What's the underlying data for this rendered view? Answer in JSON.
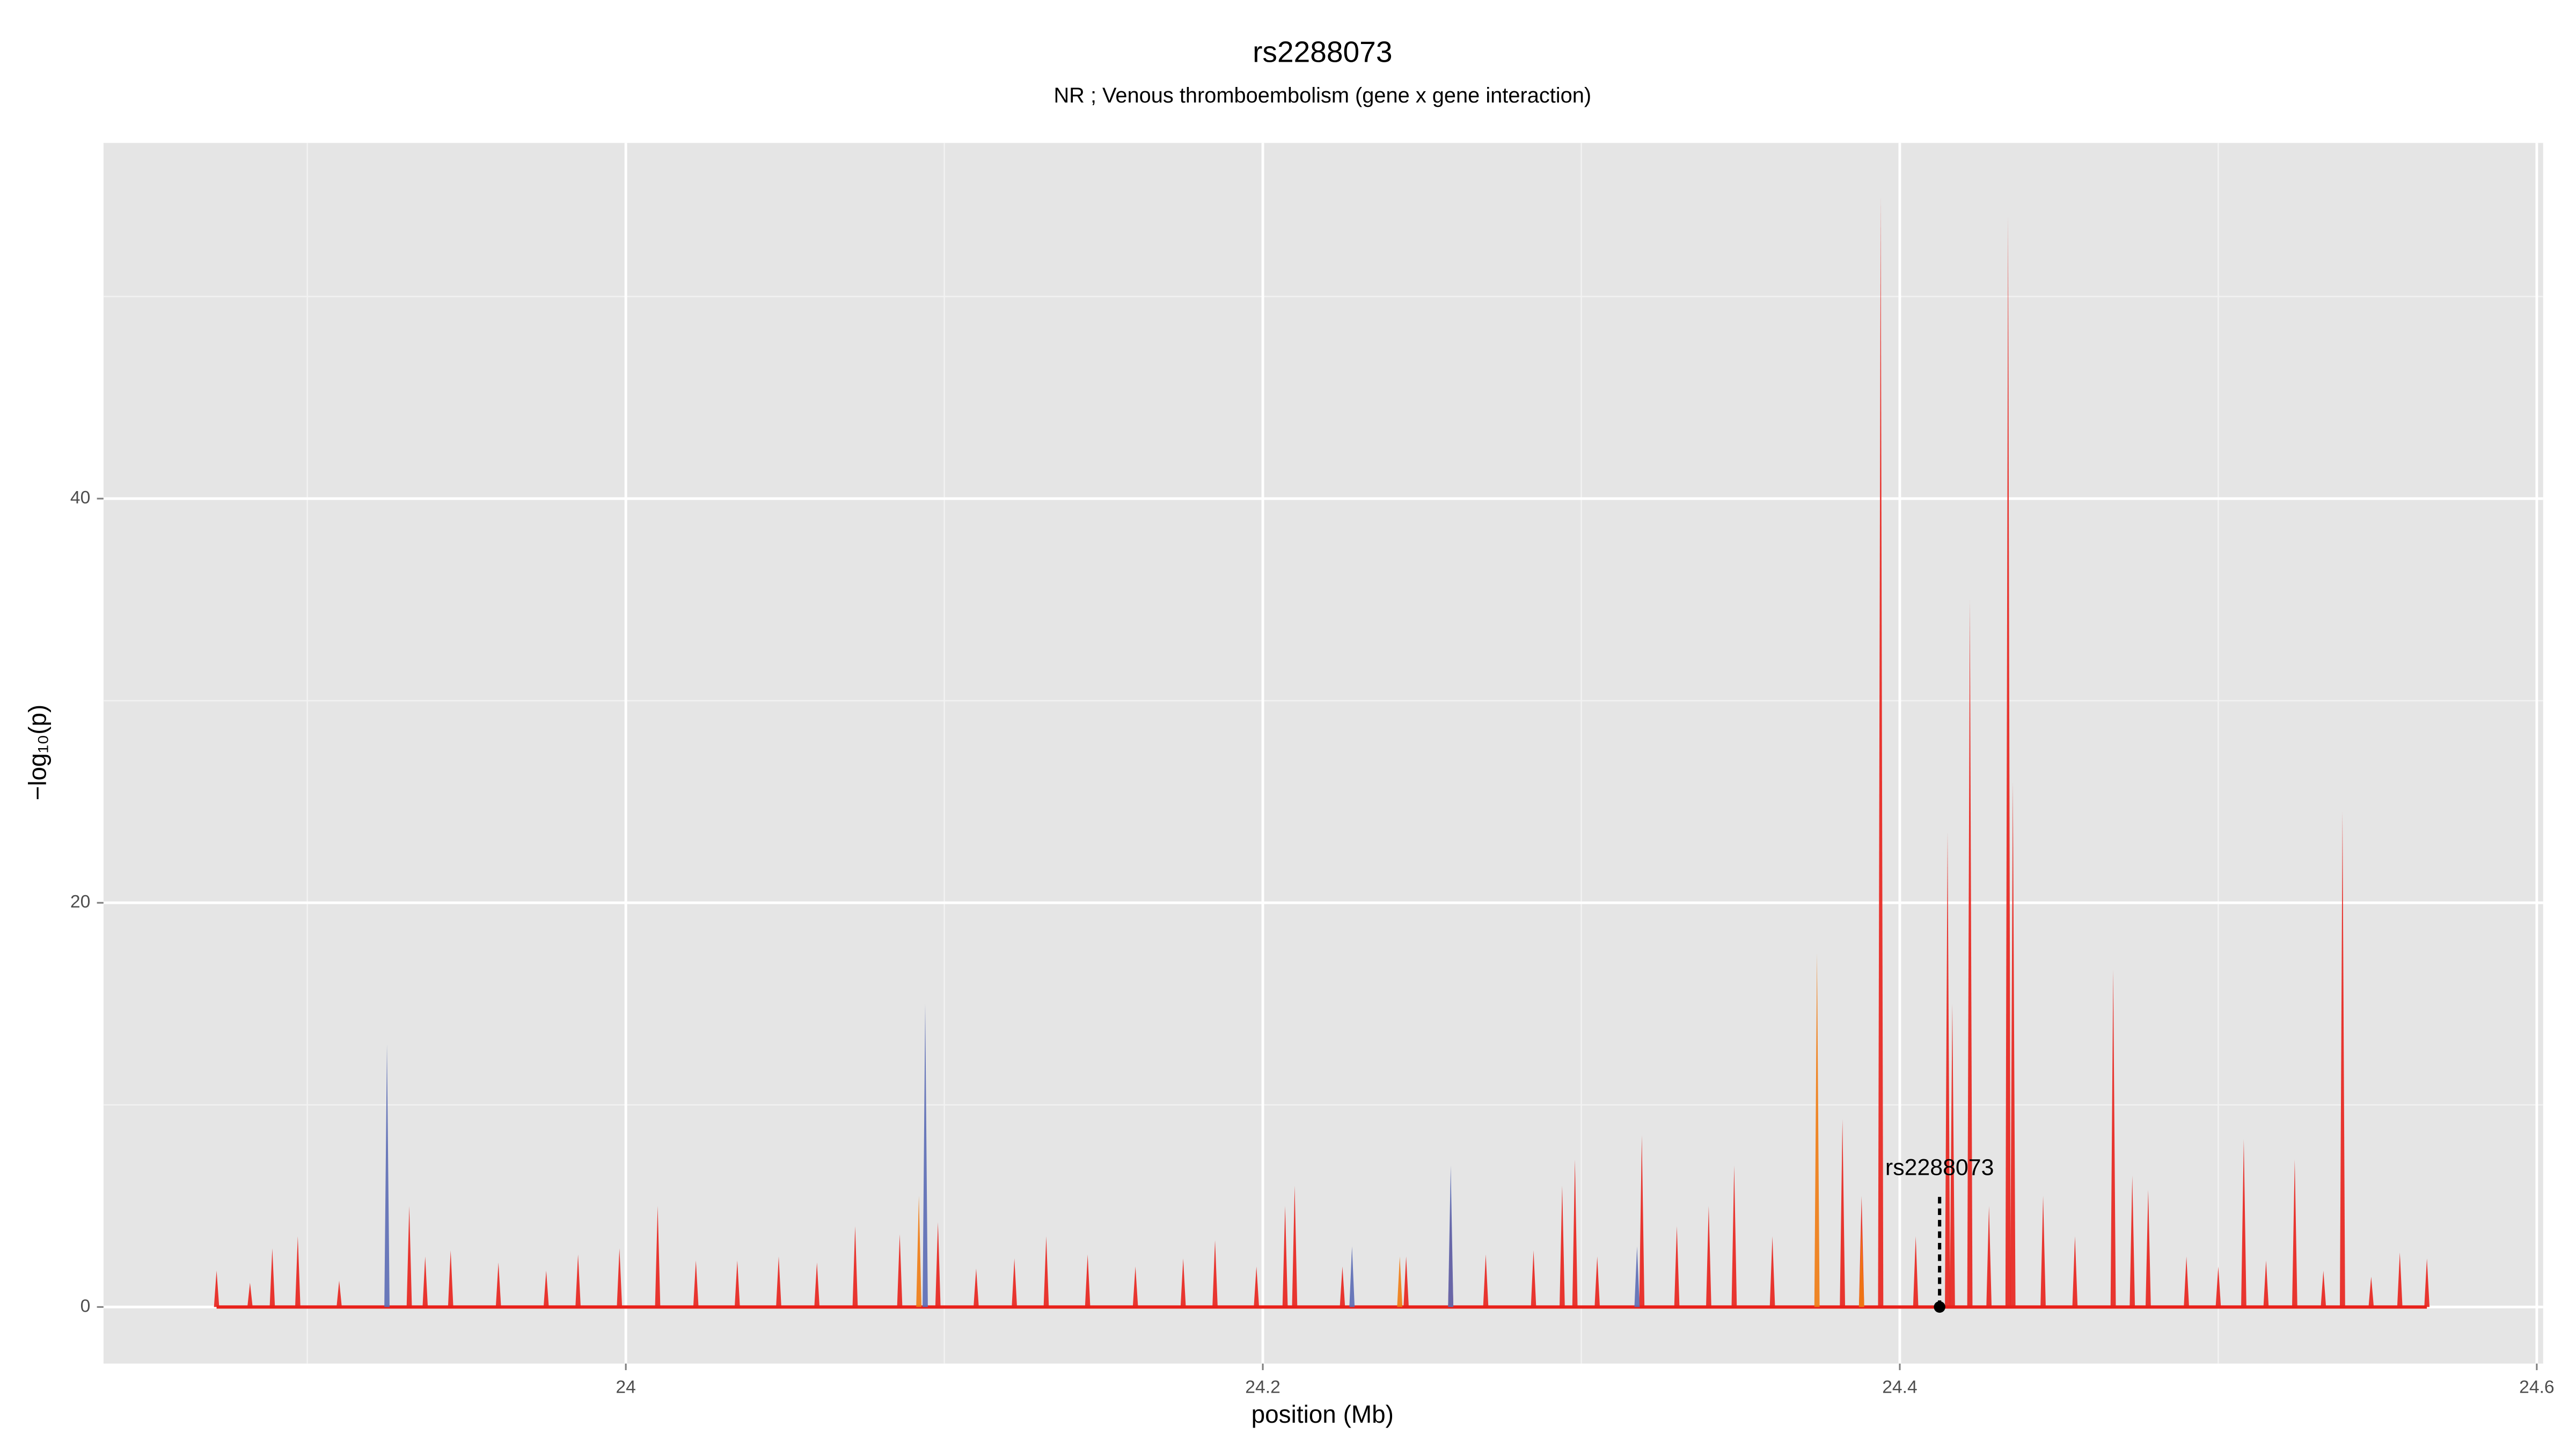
{
  "chart_data": {
    "type": "spike",
    "title": "rs2288073",
    "subtitle": "NR ; Venous thromboembolism (gene x gene interaction)",
    "xlabel": "position (Mb)",
    "ylabel": "−log₁₀(p)",
    "xlim": [
      23.836,
      24.602
    ],
    "ylim": [
      -2.8,
      57.6
    ],
    "xticks": [
      24.0,
      24.2,
      24.4,
      24.6
    ],
    "yticks": [
      0,
      20,
      40
    ],
    "x_minor_grid": [
      23.9,
      24.1,
      24.3,
      24.5
    ],
    "y_minor_grid": [
      10,
      30,
      50
    ],
    "grid": true,
    "series": [
      {
        "color": "#e8211b",
        "x": [
          23.8715,
          23.882,
          23.889,
          23.897,
          23.91,
          23.932,
          23.937,
          23.945,
          23.96,
          23.975,
          23.985,
          23.998,
          24.01,
          24.022,
          24.035,
          24.048,
          24.06,
          24.072,
          24.086,
          24.098,
          24.11,
          24.122,
          24.132,
          24.145,
          24.16,
          24.175,
          24.185,
          24.198,
          24.207,
          24.21,
          24.225,
          24.245,
          24.259,
          24.27,
          24.285,
          24.294,
          24.298,
          24.305,
          24.319,
          24.33,
          24.34,
          24.348,
          24.36,
          24.382,
          24.388,
          24.394,
          24.405,
          24.415,
          24.4165,
          24.422,
          24.428,
          24.434,
          24.4355,
          24.445,
          24.455,
          24.467,
          24.473,
          24.478,
          24.49,
          24.5,
          24.508,
          24.515,
          24.524,
          24.533,
          24.539,
          24.548,
          24.557,
          24.5655
        ],
        "values": [
          1.8,
          1.2,
          2.9,
          3.5,
          1.3,
          5,
          2.5,
          2.8,
          2.2,
          1.8,
          2.6,
          2.9,
          5,
          2.3,
          2.3,
          2.5,
          2.2,
          4,
          3.6,
          4.2,
          1.9,
          2.4,
          3.5,
          2.6,
          2,
          2.4,
          3.3,
          2,
          5,
          6,
          2,
          2.5,
          5.5,
          2.6,
          2.8,
          6,
          7.3,
          2.5,
          8.5,
          4,
          5,
          7,
          3.5,
          9.3,
          5.5,
          55,
          3.5,
          23.5,
          15,
          35,
          5,
          54,
          26,
          5.5,
          3.5,
          16.7,
          6.5,
          5.8,
          2.5,
          2,
          8.3,
          2.3,
          7.3,
          1.8,
          24.5,
          1.5,
          2.7,
          2.4
        ]
      },
      {
        "color": "#f07b12",
        "x": [
          24.092,
          24.243,
          24.374,
          24.388
        ],
        "values": [
          5.5,
          2.5,
          17.5,
          4
        ]
      },
      {
        "color": "#5b6bb5",
        "x": [
          23.925,
          24.094,
          24.228,
          24.259,
          24.3175
        ],
        "values": [
          13,
          15,
          3,
          7,
          3
        ]
      }
    ],
    "annotation": {
      "text": "rs2288073",
      "x": 24.4125,
      "y": 0
    }
  }
}
